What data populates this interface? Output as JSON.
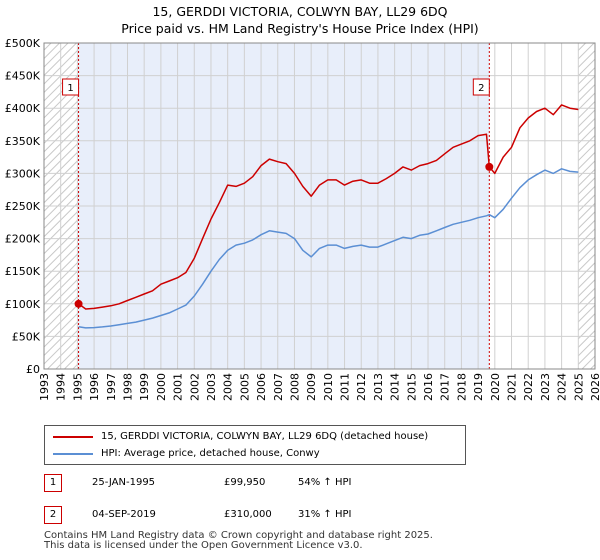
{
  "chart_data": {
    "type": "line",
    "title": "15, GERDDI VICTORIA, COLWYN BAY, LL29 6DQ",
    "subtitle": "Price paid vs. HM Land Registry's House Price Index (HPI)",
    "xlabel": "",
    "ylabel": "",
    "xlim": [
      1993,
      2026
    ],
    "ylim": [
      0,
      500000
    ],
    "y_ticks": [
      0,
      50000,
      100000,
      150000,
      200000,
      250000,
      300000,
      350000,
      400000,
      450000,
      500000
    ],
    "y_tick_labels": [
      "£0",
      "£50K",
      "£100K",
      "£150K",
      "£200K",
      "£250K",
      "£300K",
      "£350K",
      "£400K",
      "£450K",
      "£500K"
    ],
    "x_tick_labels": [
      "1993",
      "1994",
      "1995",
      "1996",
      "1997",
      "1998",
      "1999",
      "2000",
      "2001",
      "2002",
      "2003",
      "2004",
      "2005",
      "2006",
      "2007",
      "2008",
      "2009",
      "2010",
      "2011",
      "2012",
      "2013",
      "2014",
      "2015",
      "2016",
      "2017",
      "2018",
      "2019",
      "2020",
      "2021",
      "2022",
      "2023",
      "2024",
      "2025",
      "2026"
    ],
    "grid": true,
    "hatched_regions": [
      [
        1993,
        1995.07
      ],
      [
        2025.0,
        2026
      ]
    ],
    "shaded_region": [
      1995.07,
      2019.67
    ],
    "series": [
      {
        "name": "15, GERDDI VICTORIA, COLWYN BAY, LL29 6DQ (detached house)",
        "color": "#cc0000",
        "x": [
          1995.07,
          1995.5,
          1996,
          1996.5,
          1997,
          1997.5,
          1998,
          1998.5,
          1999,
          1999.5,
          2000,
          2000.5,
          2001,
          2001.5,
          2002,
          2002.5,
          2003,
          2003.5,
          2004,
          2004.5,
          2005,
          2005.5,
          2006,
          2006.5,
          2007,
          2007.5,
          2008,
          2008.5,
          2009,
          2009.5,
          2010,
          2010.5,
          2011,
          2011.5,
          2012,
          2012.5,
          2013,
          2013.5,
          2014,
          2014.5,
          2015,
          2015.5,
          2016,
          2016.5,
          2017,
          2017.5,
          2018,
          2018.5,
          2019,
          2019.5,
          2019.67,
          2020,
          2020.5,
          2021,
          2021.5,
          2022,
          2022.5,
          2023,
          2023.5,
          2024,
          2024.5,
          2025
        ],
        "values": [
          99950,
          92000,
          93000,
          95000,
          97000,
          100000,
          105000,
          110000,
          115000,
          120000,
          130000,
          135000,
          140000,
          148000,
          170000,
          200000,
          230000,
          255000,
          282000,
          280000,
          285000,
          295000,
          312000,
          322000,
          318000,
          315000,
          300000,
          280000,
          265000,
          282000,
          290000,
          290000,
          282000,
          288000,
          290000,
          285000,
          285000,
          292000,
          300000,
          310000,
          305000,
          312000,
          315000,
          320000,
          330000,
          340000,
          345000,
          350000,
          358000,
          360000,
          310000,
          300000,
          325000,
          340000,
          370000,
          385000,
          395000,
          400000,
          390000,
          405000,
          400000,
          398000
        ]
      },
      {
        "name": "HPI: Average price, detached house, Conwy",
        "color": "#5b8fd4",
        "x": [
          1995.07,
          1995.5,
          1996,
          1996.5,
          1997,
          1997.5,
          1998,
          1998.5,
          1999,
          1999.5,
          2000,
          2000.5,
          2001,
          2001.5,
          2002,
          2002.5,
          2003,
          2003.5,
          2004,
          2004.5,
          2005,
          2005.5,
          2006,
          2006.5,
          2007,
          2007.5,
          2008,
          2008.5,
          2009,
          2009.5,
          2010,
          2010.5,
          2011,
          2011.5,
          2012,
          2012.5,
          2013,
          2013.5,
          2014,
          2014.5,
          2015,
          2015.5,
          2016,
          2016.5,
          2017,
          2017.5,
          2018,
          2018.5,
          2019,
          2019.5,
          2019.67,
          2020,
          2020.5,
          2021,
          2021.5,
          2022,
          2022.5,
          2023,
          2023.5,
          2024,
          2024.5,
          2025
        ],
        "values": [
          64900,
          63000,
          63500,
          64500,
          66000,
          68000,
          70000,
          72000,
          75000,
          78000,
          82000,
          86000,
          92000,
          98000,
          112000,
          130000,
          150000,
          168000,
          182000,
          190000,
          193000,
          198000,
          206000,
          212000,
          210000,
          208000,
          200000,
          182000,
          172000,
          185000,
          190000,
          190000,
          185000,
          188000,
          190000,
          187000,
          187000,
          192000,
          197000,
          202000,
          200000,
          205000,
          207000,
          212000,
          217000,
          222000,
          225000,
          228000,
          232000,
          235000,
          236600,
          232000,
          245000,
          262000,
          278000,
          290000,
          298000,
          305000,
          300000,
          307000,
          303000,
          302000
        ]
      }
    ],
    "sales": [
      {
        "id": "1",
        "x": 1995.07,
        "value": 99950,
        "date": "25-JAN-1995",
        "price": "£99,950",
        "hpi": "54% ↑ HPI"
      },
      {
        "id": "2",
        "x": 2019.67,
        "value": 310000,
        "date": "04-SEP-2019",
        "price": "£310,000",
        "hpi": "31% ↑ HPI"
      }
    ]
  },
  "legend": {
    "property_label": "15, GERDDI VICTORIA, COLWYN BAY, LL29 6DQ (detached house)",
    "hpi_label": "HPI: Average price, detached house, Conwy"
  },
  "footer": {
    "line1": "Contains HM Land Registry data © Crown copyright and database right 2025.",
    "line2": "This data is licensed under the Open Government Licence v3.0."
  },
  "colors": {
    "property": "#cc0000",
    "hpi": "#5b8fd4",
    "shade": "#e8eefa",
    "grid": "#d0d0d0"
  }
}
